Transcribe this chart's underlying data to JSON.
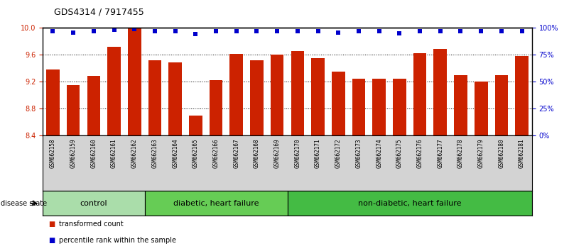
{
  "title": "GDS4314 / 7917455",
  "samples": [
    "GSM662158",
    "GSM662159",
    "GSM662160",
    "GSM662161",
    "GSM662162",
    "GSM662163",
    "GSM662164",
    "GSM662165",
    "GSM662166",
    "GSM662167",
    "GSM662168",
    "GSM662169",
    "GSM662170",
    "GSM662171",
    "GSM662172",
    "GSM662173",
    "GSM662174",
    "GSM662175",
    "GSM662176",
    "GSM662177",
    "GSM662178",
    "GSM662179",
    "GSM662180",
    "GSM662181"
  ],
  "bar_values": [
    9.38,
    9.15,
    9.28,
    9.72,
    10.0,
    9.52,
    9.48,
    8.7,
    9.22,
    9.61,
    9.52,
    9.6,
    9.65,
    9.55,
    9.35,
    9.24,
    9.24,
    9.24,
    9.62,
    9.68,
    9.3,
    9.2,
    9.3,
    9.58
  ],
  "percentile_values": [
    9.95,
    9.93,
    9.95,
    9.97,
    9.98,
    9.95,
    9.95,
    9.91,
    9.95,
    9.95,
    9.95,
    9.95,
    9.95,
    9.95,
    9.93,
    9.95,
    9.95,
    9.92,
    9.95,
    9.95,
    9.95,
    9.95,
    9.95,
    9.95
  ],
  "groups": [
    {
      "label": "control",
      "start": 0,
      "end": 5,
      "color": "#aaddaa"
    },
    {
      "label": "diabetic, heart failure",
      "start": 5,
      "end": 12,
      "color": "#66cc55"
    },
    {
      "label": "non-diabetic, heart failure",
      "start": 12,
      "end": 24,
      "color": "#44bb44"
    }
  ],
  "ylim_left": [
    8.4,
    10.0
  ],
  "ylim_right": [
    0,
    100
  ],
  "yticks_left": [
    8.4,
    8.8,
    9.2,
    9.6,
    10.0
  ],
  "yticks_right": [
    0,
    25,
    50,
    75,
    100
  ],
  "bar_color": "#cc2200",
  "dot_color": "#0000cc",
  "grid_color": "#000000",
  "background_color": "#ffffff",
  "label_color_left": "#cc2200",
  "label_color_right": "#0000cc",
  "legend_bar_label": "transformed count",
  "legend_dot_label": "percentile rank within the sample",
  "disease_state_label": "disease state",
  "bar_width": 0.65,
  "title_fontsize": 9,
  "tick_fontsize": 7,
  "sample_fontsize": 5.5,
  "group_fontsize": 8,
  "legend_fontsize": 7
}
